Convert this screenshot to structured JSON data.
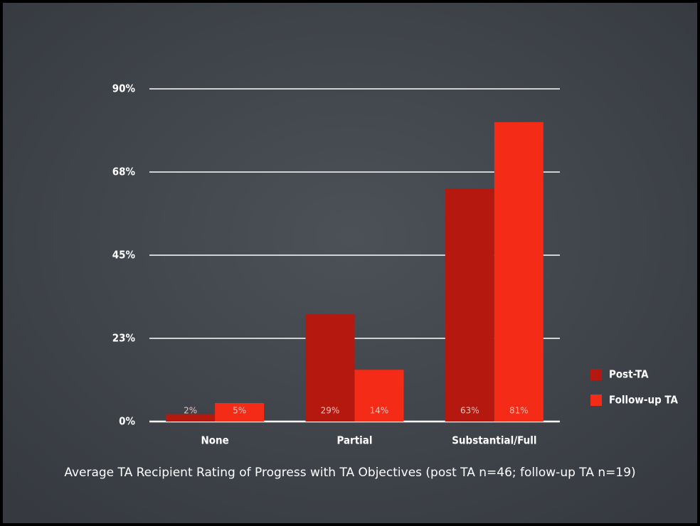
{
  "chart_data": {
    "type": "bar",
    "title": "Average TA Recipient Rating of Progress with TA Objectives (post TA n=46; follow-up TA n=19)",
    "categories": [
      "None",
      "Partial",
      "Substantial/Full"
    ],
    "series": [
      {
        "name": "Post-TA",
        "color": "#b5180f",
        "values": [
          2,
          29,
          63
        ],
        "value_labels": [
          "2%",
          "29%",
          "63%"
        ]
      },
      {
        "name": "Follow-up TA",
        "color": "#f42b17",
        "values": [
          5,
          14,
          81
        ],
        "value_labels": [
          "5%",
          "14%",
          "81%"
        ]
      }
    ],
    "ylim": [
      0,
      90
    ],
    "yticks": [
      {
        "value": 0,
        "label": "0%"
      },
      {
        "value": 22.5,
        "label": "23%"
      },
      {
        "value": 45,
        "label": "45%"
      },
      {
        "value": 67.5,
        "label": "68%"
      },
      {
        "value": 90,
        "label": "90%"
      }
    ],
    "grid": true,
    "legend": "right"
  }
}
